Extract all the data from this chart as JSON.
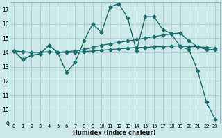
{
  "xlabel": "Humidex (Indice chaleur)",
  "bg_color": "#cce8e8",
  "grid_color": "#aacfcf",
  "line_color": "#1a6e6e",
  "xlim": [
    -0.5,
    23.5
  ],
  "ylim": [
    9,
    17.5
  ],
  "yticks": [
    9,
    10,
    11,
    12,
    13,
    14,
    15,
    16,
    17
  ],
  "xticks": [
    0,
    1,
    2,
    3,
    4,
    5,
    6,
    7,
    8,
    9,
    10,
    11,
    12,
    13,
    14,
    15,
    16,
    17,
    18,
    19,
    20,
    21,
    22,
    23
  ],
  "series1": [
    14.1,
    13.5,
    13.8,
    13.9,
    14.5,
    14.0,
    12.6,
    13.3,
    14.8,
    16.0,
    15.4,
    17.2,
    17.4,
    16.4,
    14.1,
    16.5,
    16.5,
    15.6,
    15.3,
    14.4,
    14.2,
    12.7,
    10.5,
    9.3
  ],
  "series2": [
    14.1,
    13.5,
    13.8,
    13.9,
    14.5,
    14.0,
    14.05,
    14.1,
    14.2,
    14.35,
    14.5,
    14.6,
    14.7,
    14.8,
    14.9,
    15.0,
    15.1,
    15.2,
    15.3,
    15.35,
    14.8,
    14.4,
    14.2,
    14.2
  ],
  "series3": [
    14.1,
    14.05,
    14.0,
    14.0,
    14.05,
    14.0,
    14.0,
    14.0,
    14.05,
    14.1,
    14.15,
    14.2,
    14.25,
    14.3,
    14.35,
    14.35,
    14.4,
    14.4,
    14.45,
    14.45,
    14.4,
    14.4,
    14.35,
    14.3
  ],
  "xlabel_fontsize": 6,
  "ylabel_fontsize": 6,
  "tick_fontsize": 5,
  "lw": 1.0,
  "marker_size": 2.5
}
